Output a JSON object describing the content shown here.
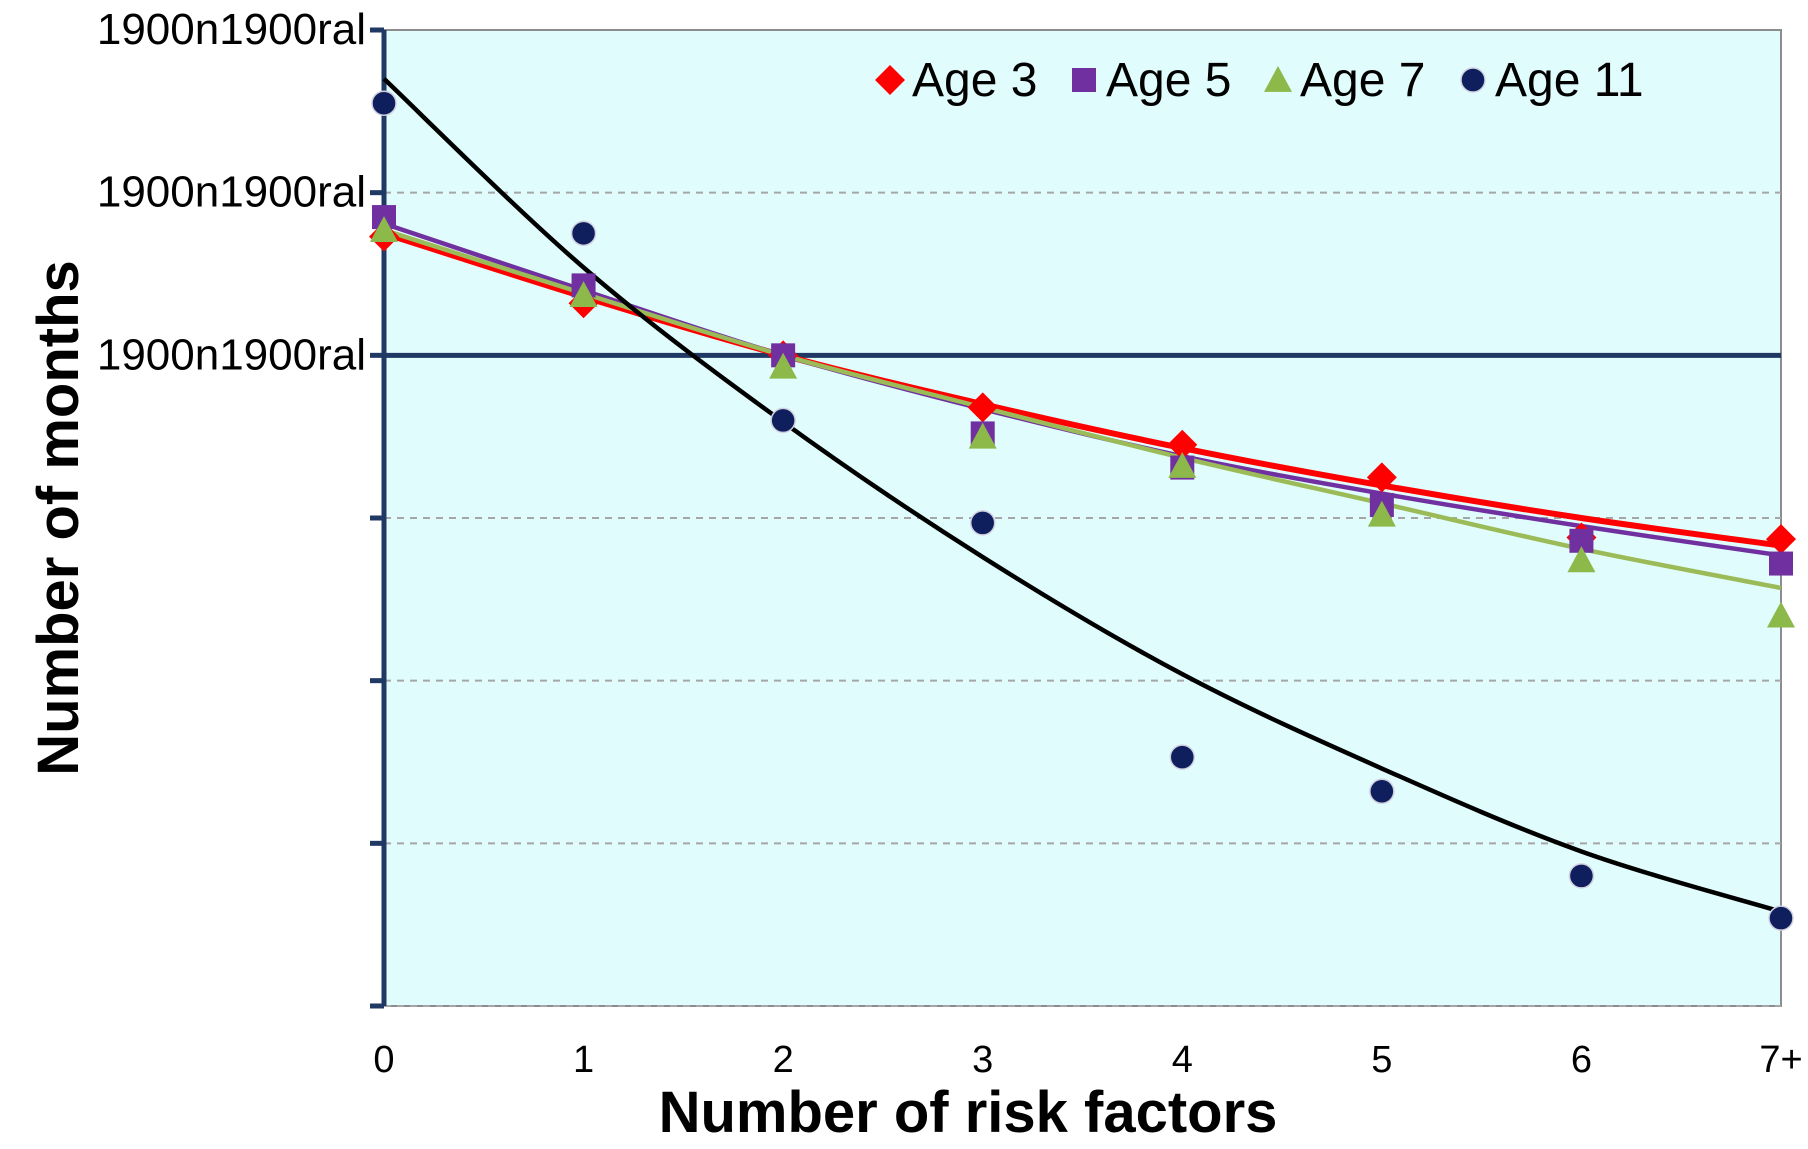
{
  "chart_data": {
    "type": "scatter",
    "title": "",
    "xlabel": "Number of risk factors",
    "ylabel": "Number of months",
    "categories": [
      "0",
      "1",
      "2",
      "3",
      "4",
      "5",
      "6",
      "7+"
    ],
    "x": [
      0,
      1,
      2,
      3,
      4,
      5,
      6,
      7
    ],
    "ylim": [
      -2,
      4
    ],
    "y_gridlines": [
      -2,
      -1,
      0,
      1,
      2,
      3
    ],
    "y_ticks": [
      {
        "value": 4,
        "label": "1900n1900ral"
      },
      {
        "value": 3,
        "label": "1900n1900ral"
      },
      {
        "value": 2,
        "label": "1900n1900ral"
      },
      {
        "value": 1,
        "label": ""
      },
      {
        "value": 0,
        "label": ""
      },
      {
        "value": -1,
        "label": ""
      },
      {
        "value": -2,
        "label": ""
      }
    ],
    "reference_line": 2,
    "grid": true,
    "legend_position": "top-right",
    "plot_background": "#e0fcfc",
    "axis_color": "#1f3864",
    "series": [
      {
        "name": "Age 3",
        "marker": "diamond",
        "color": "#ff0000",
        "line_color": "#ff0000",
        "values": [
          2.73,
          2.32,
          2.0,
          1.68,
          1.45,
          1.25,
          0.88,
          0.87
        ],
        "trend": [
          2.75,
          2.36,
          2.0,
          1.7,
          1.43,
          1.2,
          1.0,
          0.83
        ]
      },
      {
        "name": "Age 5",
        "marker": "square",
        "color": "#7030a0",
        "line_color": "#7030a0",
        "values": [
          2.85,
          2.43,
          2.0,
          1.52,
          1.31,
          1.08,
          0.86,
          0.72
        ],
        "trend": [
          2.81,
          2.4,
          2.0,
          1.67,
          1.38,
          1.15,
          0.95,
          0.77
        ]
      },
      {
        "name": "Age 7",
        "marker": "triangle",
        "color": "#8db84a",
        "line_color": "#9bbb59",
        "values": [
          2.77,
          2.37,
          1.93,
          1.5,
          1.32,
          1.02,
          0.74,
          0.4
        ],
        "trend": [
          2.77,
          2.38,
          2.0,
          1.68,
          1.37,
          1.09,
          0.81,
          0.57
        ]
      },
      {
        "name": "Age 11",
        "marker": "circle",
        "color": "#0f1e5c",
        "line_color": "#000000",
        "values": [
          3.55,
          2.75,
          1.6,
          0.97,
          -0.47,
          -0.68,
          -1.2,
          -1.46
        ],
        "trend": [
          3.7,
          2.54,
          1.59,
          0.76,
          0.04,
          -0.54,
          -1.05,
          -1.42
        ]
      }
    ]
  }
}
